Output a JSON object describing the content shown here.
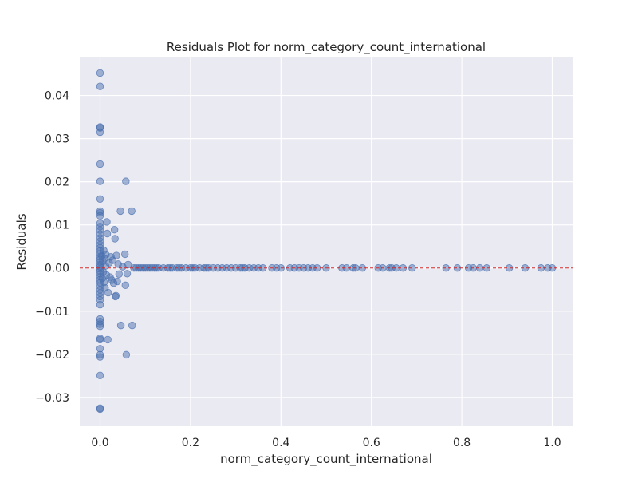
{
  "chart_data": {
    "type": "scatter",
    "title": "Residuals Plot for norm_category_count_international",
    "xlabel": "norm_category_count_international",
    "ylabel": "Residuals",
    "xlim": [
      -0.045,
      1.045
    ],
    "ylim": [
      -0.0365,
      0.0488
    ],
    "x_ticks": [
      0.0,
      0.2,
      0.4,
      0.6,
      0.8,
      1.0
    ],
    "x_tick_labels": [
      "0.0",
      "0.2",
      "0.4",
      "0.6",
      "0.8",
      "1.0"
    ],
    "y_ticks": [
      -0.03,
      -0.02,
      -0.01,
      0.0,
      0.01,
      0.02,
      0.03,
      0.04
    ],
    "y_tick_labels": [
      "−0.03",
      "−0.02",
      "−0.01",
      "0.00",
      "0.01",
      "0.02",
      "0.03",
      "0.04"
    ],
    "grid": true,
    "reference_line": {
      "y": 0.0,
      "style": "dashed",
      "color": "#d62728"
    },
    "colors": {
      "background": "#eaeaf2",
      "grid": "#ffffff",
      "marker": "#4c72b0"
    },
    "marker_alpha": 0.5,
    "series": [
      {
        "points": [
          [
            0.0,
            0.0452
          ],
          [
            0.0,
            0.0421
          ],
          [
            0.0,
            0.0327
          ],
          [
            0.0,
            0.0325
          ],
          [
            0.0,
            0.0315
          ],
          [
            0.0,
            0.0241
          ],
          [
            0.0,
            0.0201
          ],
          [
            0.0,
            0.016
          ],
          [
            0.0,
            0.0132
          ],
          [
            0.0,
            0.0128
          ],
          [
            0.0,
            0.0121
          ],
          [
            0.0,
            0.0104
          ],
          [
            0.0,
            0.0096
          ],
          [
            0.0,
            0.0088
          ],
          [
            0.0,
            0.0079
          ],
          [
            0.0,
            0.007
          ],
          [
            0.0,
            0.0062
          ],
          [
            0.0,
            0.0054
          ],
          [
            0.0,
            0.0047
          ],
          [
            0.0,
            0.004
          ],
          [
            0.0,
            0.0033
          ],
          [
            0.0,
            0.0026
          ],
          [
            0.0,
            0.002
          ],
          [
            0.0,
            0.0014
          ],
          [
            0.0,
            0.0008
          ],
          [
            0.0,
            0.0003
          ],
          [
            0.0,
            -0.0002
          ],
          [
            0.0,
            -0.0007
          ],
          [
            0.0,
            -0.0013
          ],
          [
            0.0,
            -0.002
          ],
          [
            0.0,
            -0.0027
          ],
          [
            0.0,
            -0.0034
          ],
          [
            0.0,
            -0.0042
          ],
          [
            0.0,
            -0.005
          ],
          [
            0.0,
            -0.0058
          ],
          [
            0.0,
            -0.0066
          ],
          [
            0.0,
            -0.0074
          ],
          [
            0.0,
            -0.0085
          ],
          [
            0.0,
            -0.0118
          ],
          [
            0.0,
            -0.0124
          ],
          [
            0.0,
            -0.013
          ],
          [
            0.0,
            -0.0135
          ],
          [
            0.0,
            -0.0163
          ],
          [
            0.0,
            -0.0166
          ],
          [
            0.0,
            -0.0187
          ],
          [
            0.0,
            -0.0201
          ],
          [
            0.0,
            -0.0206
          ],
          [
            0.0,
            -0.0249
          ],
          [
            0.0,
            -0.0325
          ],
          [
            0.0,
            -0.0327
          ],
          [
            0.004,
            0.0028
          ],
          [
            0.005,
            -0.0024
          ],
          [
            0.006,
            0.0015
          ],
          [
            0.007,
            -0.0009
          ],
          [
            0.008,
            0.0041
          ],
          [
            0.009,
            -0.0033
          ],
          [
            0.01,
            0.0022
          ],
          [
            0.011,
            -0.0046
          ],
          [
            0.012,
            0.0005
          ],
          [
            0.013,
            0.0031
          ],
          [
            0.014,
            -0.0016
          ],
          [
            0.015,
            0.0107
          ],
          [
            0.016,
            0.008
          ],
          [
            0.017,
            -0.0166
          ],
          [
            0.018,
            -0.0057
          ],
          [
            0.02,
            0.0012
          ],
          [
            0.022,
            -0.0021
          ],
          [
            0.024,
            0.0026
          ],
          [
            0.026,
            -0.0028
          ],
          [
            0.028,
            0.0018
          ],
          [
            0.03,
            -0.0035
          ],
          [
            0.032,
            0.0089
          ],
          [
            0.033,
            0.0068
          ],
          [
            0.034,
            -0.0066
          ],
          [
            0.035,
            -0.0064
          ],
          [
            0.036,
            0.0029
          ],
          [
            0.038,
            -0.0031
          ],
          [
            0.04,
            0.0009
          ],
          [
            0.042,
            -0.0014
          ],
          [
            0.045,
            0.0132
          ],
          [
            0.046,
            -0.0133
          ],
          [
            0.05,
            0.0003
          ],
          [
            0.055,
            0.0032
          ],
          [
            0.056,
            -0.004
          ],
          [
            0.057,
            0.0201
          ],
          [
            0.058,
            -0.0201
          ],
          [
            0.06,
            -0.0013
          ],
          [
            0.062,
            0.0008
          ],
          [
            0.07,
            0.0132
          ],
          [
            0.071,
            -0.0133
          ],
          [
            0.075,
            0.0
          ],
          [
            0.08,
            0.0
          ],
          [
            0.085,
            0.0
          ],
          [
            0.09,
            0.0
          ],
          [
            0.095,
            0.0
          ],
          [
            0.1,
            0.0
          ],
          [
            0.105,
            0.0
          ],
          [
            0.11,
            0.0
          ],
          [
            0.115,
            0.0
          ],
          [
            0.12,
            0.0
          ],
          [
            0.125,
            0.0
          ],
          [
            0.13,
            0.0
          ],
          [
            0.14,
            0.0
          ],
          [
            0.15,
            0.0
          ],
          [
            0.155,
            0.0
          ],
          [
            0.16,
            0.0
          ],
          [
            0.17,
            0.0
          ],
          [
            0.175,
            0.0
          ],
          [
            0.18,
            0.0
          ],
          [
            0.19,
            0.0
          ],
          [
            0.2,
            0.0
          ],
          [
            0.205,
            0.0
          ],
          [
            0.21,
            0.0
          ],
          [
            0.22,
            0.0
          ],
          [
            0.23,
            0.0
          ],
          [
            0.235,
            0.0
          ],
          [
            0.24,
            0.0
          ],
          [
            0.25,
            0.0
          ],
          [
            0.26,
            0.0
          ],
          [
            0.27,
            0.0
          ],
          [
            0.28,
            0.0
          ],
          [
            0.29,
            0.0
          ],
          [
            0.3,
            0.0
          ],
          [
            0.31,
            0.0
          ],
          [
            0.315,
            0.0
          ],
          [
            0.32,
            0.0
          ],
          [
            0.33,
            0.0
          ],
          [
            0.34,
            0.0
          ],
          [
            0.35,
            0.0
          ],
          [
            0.36,
            0.0
          ],
          [
            0.38,
            0.0
          ],
          [
            0.39,
            0.0
          ],
          [
            0.4,
            0.0
          ],
          [
            0.42,
            0.0
          ],
          [
            0.43,
            0.0
          ],
          [
            0.44,
            0.0
          ],
          [
            0.45,
            0.0
          ],
          [
            0.46,
            0.0
          ],
          [
            0.47,
            0.0
          ],
          [
            0.48,
            0.0
          ],
          [
            0.5,
            0.0
          ],
          [
            0.535,
            0.0
          ],
          [
            0.545,
            0.0
          ],
          [
            0.56,
            0.0
          ],
          [
            0.565,
            0.0
          ],
          [
            0.58,
            0.0
          ],
          [
            0.615,
            0.0
          ],
          [
            0.625,
            0.0
          ],
          [
            0.64,
            0.0
          ],
          [
            0.645,
            0.0
          ],
          [
            0.655,
            0.0
          ],
          [
            0.67,
            0.0
          ],
          [
            0.69,
            0.0
          ],
          [
            0.765,
            0.0
          ],
          [
            0.79,
            0.0
          ],
          [
            0.815,
            0.0
          ],
          [
            0.825,
            0.0
          ],
          [
            0.84,
            0.0
          ],
          [
            0.855,
            0.0
          ],
          [
            0.905,
            0.0
          ],
          [
            0.94,
            0.0
          ],
          [
            0.975,
            0.0
          ],
          [
            0.99,
            0.0
          ],
          [
            1.0,
            0.0
          ]
        ]
      }
    ]
  }
}
